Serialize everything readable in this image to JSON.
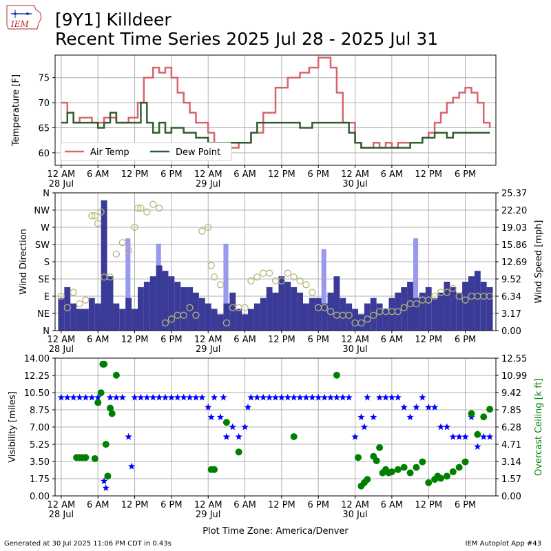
{
  "header": {
    "title_line1": "[9Y1] Killdeer",
    "title_line2": "Recent Time Series 2025 Jul 28 - 2025 Jul 31",
    "logo_text": "IEM"
  },
  "footer": {
    "generated": "Generated at 30 Jul 2025 11:06 PM CDT in 0.43s",
    "app": "IEM Autoplot App #43",
    "timezone_label": "Plot Time Zone: America/Denver"
  },
  "colors": {
    "air_temp": "#d9636b",
    "dew_point": "#2e5e2e",
    "wind_speed_bar": "#3a3a98",
    "wind_gust_bar": "#9999ee",
    "wind_dir_marker": "#b7b77a",
    "visibility": "#0000ff",
    "ceiling": "#008000",
    "grid": "#b0b0b0",
    "ceiling_axis_label": "#008000"
  },
  "chart_data": [
    {
      "type": "line",
      "panel": "temperature",
      "ylabel": "Temperature [F]",
      "ylim": [
        57.5,
        79.5
      ],
      "yticks": [
        60,
        65,
        70,
        75
      ],
      "xlim_hours": [
        -1,
        71
      ],
      "xtick_labels": [
        "12 AM\n28 Jul",
        "6 AM",
        "12 PM",
        "6 PM",
        "12 AM\n29 Jul",
        "6 AM",
        "12 PM",
        "6 PM",
        "12 AM\n30 Jul",
        "6 AM",
        "12 PM",
        "6 PM"
      ],
      "grid": true,
      "legend": "lower-left",
      "series": [
        {
          "name": "Air Temp",
          "x_hours": [
            0,
            1,
            2,
            3,
            5,
            7,
            9,
            11,
            12.5,
            13.5,
            15,
            16,
            17,
            18,
            19,
            20,
            21,
            22,
            24,
            25,
            27,
            29,
            31,
            33,
            35,
            37,
            39,
            40.5,
            42,
            43,
            44,
            45,
            46,
            48,
            49,
            51,
            52,
            53,
            54,
            55,
            57,
            59,
            60,
            61,
            62,
            63,
            64,
            65,
            66,
            67,
            68,
            69,
            70
          ],
          "values": [
            70,
            68,
            66,
            67,
            66,
            67,
            66,
            67,
            70,
            75,
            77,
            76,
            77,
            75,
            72,
            70,
            68,
            66,
            64,
            62,
            61,
            62,
            64,
            68,
            73,
            75,
            76,
            77,
            79,
            79,
            77,
            72,
            66,
            62,
            61,
            62,
            61,
            62,
            61,
            62,
            62,
            63,
            64,
            66,
            68,
            70,
            71,
            72,
            73,
            72,
            70,
            66,
            65
          ]
        },
        {
          "name": "Dew Point",
          "x_hours": [
            0,
            1,
            2,
            3,
            5,
            6,
            7,
            8,
            9,
            10,
            11,
            12.5,
            13,
            14,
            15,
            16,
            17,
            18,
            20,
            22,
            24,
            26,
            28,
            30,
            31,
            32,
            33,
            35,
            37,
            39,
            41,
            43,
            45,
            46,
            47,
            48,
            49,
            51,
            53,
            55,
            57,
            59,
            60,
            61,
            62,
            63,
            64,
            65,
            66,
            67,
            68,
            69,
            70
          ],
          "values": [
            66,
            68,
            66,
            66,
            66,
            65,
            66,
            68,
            66,
            66,
            66,
            66,
            70,
            66,
            64,
            66,
            64,
            65,
            64,
            63,
            62,
            62,
            62,
            62,
            64,
            66,
            66,
            66,
            66,
            65,
            66,
            66,
            66,
            66,
            64,
            62,
            61,
            61,
            61,
            61,
            62,
            63,
            63,
            64,
            64,
            63,
            64,
            64,
            64,
            64,
            64,
            64,
            64
          ]
        }
      ]
    },
    {
      "type": "bar",
      "panel": "wind",
      "ylabel": "Wind Direction",
      "y2label": "Wind Speed [mph]",
      "direction_ticks": [
        "N",
        "NE",
        "E",
        "SE",
        "S",
        "SW",
        "W",
        "NW",
        "N"
      ],
      "speed_ticks": [
        "0.00",
        "3.17",
        "6.34",
        "9.52",
        "12.69",
        "15.86",
        "19.03",
        "22.20",
        "25.37"
      ],
      "ylim_speed": [
        0,
        25.37
      ],
      "xlim_hours": [
        -1,
        71
      ],
      "xtick_labels": [
        "12 AM\n28 Jul",
        "6 AM",
        "12 PM",
        "6 PM",
        "12 AM\n29 Jul",
        "6 AM",
        "12 PM",
        "6 PM",
        "12 AM\n30 Jul",
        "6 AM",
        "12 PM",
        "6 PM"
      ],
      "grid": true,
      "series": [
        {
          "name": "Wind Speed",
          "x_hours": [
            0,
            1,
            2,
            3,
            4,
            5,
            6,
            6.5,
            7,
            8,
            9,
            10,
            11,
            12,
            13,
            14,
            15,
            16,
            17,
            18,
            19,
            20,
            21,
            22,
            23,
            24,
            25,
            26,
            27,
            28,
            29,
            30,
            31,
            32,
            33,
            34,
            35,
            36,
            37,
            38,
            39,
            40,
            41,
            42,
            43,
            44,
            45,
            46,
            47,
            48,
            49,
            50,
            51,
            52,
            53,
            54,
            55,
            56,
            57,
            58,
            59,
            60,
            61,
            62,
            63,
            64,
            65,
            66,
            67,
            68,
            69,
            70
          ],
          "values": [
            6,
            8,
            5,
            4,
            4,
            6,
            5,
            3,
            24,
            10,
            5,
            4,
            6,
            4,
            8,
            9,
            10,
            12,
            11,
            10,
            9,
            8,
            8,
            7,
            6,
            5,
            4,
            3,
            5,
            7,
            4,
            3,
            4,
            5,
            6,
            8,
            7,
            10,
            9,
            8,
            7,
            5,
            6,
            6,
            5,
            7,
            10,
            6,
            5,
            4,
            3,
            5,
            6,
            5,
            4,
            6,
            7,
            8,
            9,
            6,
            7,
            8,
            6,
            7,
            9,
            8,
            7,
            9,
            10,
            11,
            9,
            8
          ]
        },
        {
          "name": "Wind Gust",
          "x_hours": [
            7,
            11,
            16,
            27,
            43,
            58
          ],
          "values": [
            24,
            17,
            16,
            16,
            15,
            17
          ]
        },
        {
          "name": "Wind Direction",
          "x_hours": [
            0,
            1,
            2,
            3,
            4,
            5,
            5.5,
            6,
            6.5,
            7,
            8,
            9,
            10,
            11,
            12,
            12.5,
            13,
            14,
            15,
            16,
            17,
            18,
            19,
            20,
            21,
            22,
            23,
            24,
            24.5,
            25,
            26,
            27,
            28,
            29,
            30,
            31,
            32,
            33,
            34,
            35,
            36,
            37,
            38,
            39,
            40,
            41,
            42,
            43,
            44,
            45,
            46,
            47,
            48,
            49,
            50,
            51,
            52,
            53,
            54,
            55,
            56,
            57,
            58,
            59,
            60,
            61,
            62,
            63,
            64,
            65,
            66,
            67,
            68,
            69,
            70
          ],
          "values_deg": [
            90,
            60,
            100,
            70,
            80,
            300,
            300,
            280,
            310,
            140,
            140,
            200,
            230,
            210,
            270,
            320,
            320,
            310,
            330,
            320,
            20,
            30,
            40,
            40,
            60,
            40,
            260,
            270,
            170,
            140,
            120,
            20,
            60,
            60,
            60,
            130,
            140,
            150,
            150,
            130,
            130,
            150,
            140,
            130,
            120,
            100,
            60,
            60,
            50,
            40,
            40,
            40,
            20,
            20,
            30,
            40,
            50,
            50,
            50,
            50,
            60,
            70,
            70,
            80,
            80,
            90,
            100,
            100,
            110,
            90,
            80,
            90,
            90,
            90,
            90
          ]
        }
      ]
    },
    {
      "type": "scatter",
      "panel": "visibility_ceiling",
      "ylabel": "Visibility [miles]",
      "y2label": "Overcast Ceiling [k ft]",
      "ylim": [
        0,
        14
      ],
      "yticks": [
        "0.00",
        "1.75",
        "3.50",
        "5.25",
        "7.00",
        "8.75",
        "10.50",
        "12.25",
        "14.00"
      ],
      "y2lim": [
        0,
        12.55
      ],
      "y2ticks": [
        "0.00",
        "1.57",
        "3.14",
        "4.71",
        "6.28",
        "7.85",
        "9.42",
        "10.99",
        "12.55"
      ],
      "xlim_hours": [
        -1,
        71
      ],
      "xtick_labels": [
        "12 AM\n28 Jul",
        "6 AM",
        "12 PM",
        "6 PM",
        "12 AM\n29 Jul",
        "6 AM",
        "12 PM",
        "6 PM",
        "12 AM\n30 Jul",
        "6 AM",
        "12 PM",
        "6 PM"
      ],
      "grid": true,
      "series": [
        {
          "name": "Visibility",
          "x_hours": [
            0,
            1,
            2,
            3,
            4,
            5,
            6,
            7,
            7.3,
            8,
            9,
            10,
            11,
            11.5,
            12,
            13,
            14,
            15,
            16,
            17,
            18,
            19,
            20,
            21,
            22,
            23,
            24,
            24.5,
            25,
            26,
            26.5,
            27,
            28,
            29,
            30,
            30.5,
            31,
            32,
            33,
            34,
            35,
            36,
            37,
            38,
            39,
            40,
            41,
            42,
            43,
            44,
            45,
            46,
            47,
            48,
            49,
            49.5,
            50,
            51,
            52,
            53,
            54,
            55,
            56,
            57,
            58,
            59,
            60,
            61,
            62,
            63,
            64,
            65,
            66,
            67,
            68,
            69,
            70
          ],
          "values": [
            10,
            10,
            10,
            10,
            10,
            10,
            10,
            1.5,
            0.8,
            10,
            10,
            10,
            6,
            3,
            10,
            10,
            10,
            10,
            10,
            10,
            10,
            10,
            10,
            10,
            10,
            10,
            9,
            8,
            10,
            8,
            10,
            6,
            7,
            6,
            7,
            9,
            10,
            10,
            10,
            10,
            10,
            10,
            10,
            10,
            10,
            10,
            10,
            10,
            10,
            10,
            10,
            10,
            10,
            6,
            8,
            7,
            10,
            8,
            10,
            10,
            10,
            10,
            9,
            8,
            9,
            10,
            9,
            9,
            7,
            7,
            6,
            6,
            6,
            8,
            5,
            6,
            6
          ]
        },
        {
          "name": "Overcast Ceiling",
          "x_hours": [
            2.5,
            3,
            3.5,
            4,
            5.5,
            6,
            6.5,
            6.8,
            7,
            7.3,
            7.6,
            8,
            8.3,
            9,
            24.5,
            25,
            27,
            29,
            38,
            45,
            48.5,
            49,
            49.5,
            50,
            51,
            51.5,
            52,
            52.5,
            53,
            53.5,
            54,
            55,
            56,
            57,
            58,
            59,
            60,
            61,
            61.5,
            62,
            63,
            64,
            65,
            66,
            67,
            68,
            69,
            70
          ],
          "values": [
            3.5,
            3.5,
            3.5,
            3.5,
            3.4,
            8.5,
            9.4,
            12,
            12,
            4.7,
            1.8,
            8,
            7.5,
            11,
            2.4,
            2.4,
            6.7,
            4,
            5.4,
            11,
            3.5,
            0.9,
            1.2,
            1.5,
            3.6,
            3.2,
            4.4,
            2.1,
            2.4,
            2.1,
            2.2,
            2.4,
            2.6,
            2.1,
            2.6,
            3.1,
            1.2,
            1.5,
            1.8,
            1.6,
            1.8,
            2.2,
            2.6,
            3.1,
            7.5,
            5.6,
            7.2,
            7.9
          ]
        }
      ]
    }
  ]
}
